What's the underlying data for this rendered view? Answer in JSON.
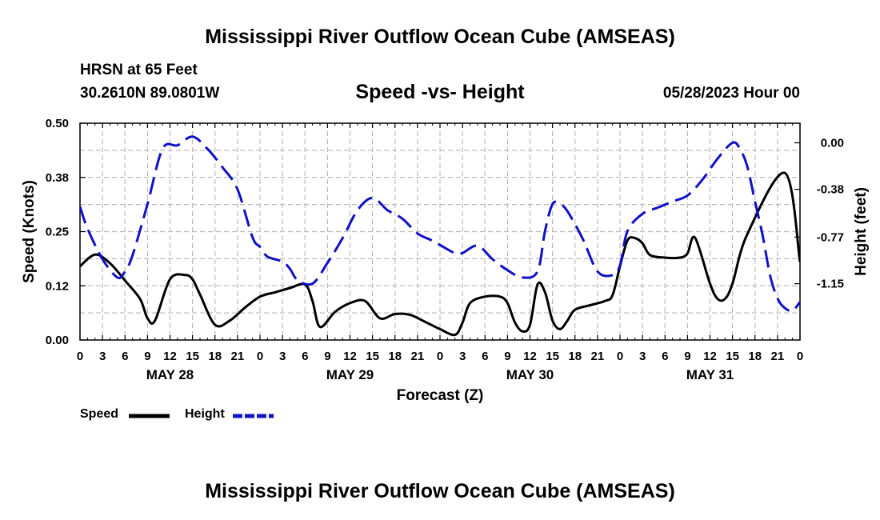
{
  "header": {
    "title": "Mississippi River Outflow Ocean Cube (AMSEAS)",
    "station": "HRSN at 65 Feet",
    "coords": "30.2610N  89.0801W",
    "subtitle": "Speed -vs- Height",
    "datetime": "05/28/2023 Hour 00",
    "footer_title": "Mississippi River Outflow Ocean Cube (AMSEAS)"
  },
  "chart_data": {
    "type": "line",
    "title": "Speed -vs- Height",
    "xlabel": "Forecast (Z)",
    "ylabel": "Speed (Knots)",
    "y2label": "Height (feet)",
    "x_range_hours": [
      0,
      96
    ],
    "x_tick_step_hours": 3,
    "x_tick_labels": [
      "0",
      "3",
      "6",
      "9",
      "12",
      "15",
      "18",
      "21",
      "0",
      "3",
      "6",
      "9",
      "12",
      "15",
      "18",
      "21",
      "0",
      "3",
      "6",
      "9",
      "12",
      "15",
      "18",
      "21",
      "0",
      "3",
      "6",
      "9",
      "12",
      "15",
      "18",
      "21",
      "0"
    ],
    "day_labels": [
      {
        "label": "MAY 28",
        "hour": 12
      },
      {
        "label": "MAY 29",
        "hour": 36
      },
      {
        "label": "MAY 30",
        "hour": 60
      },
      {
        "label": "MAY 31",
        "hour": 84
      }
    ],
    "ylim": [
      0,
      0.5
    ],
    "y_ticks": [
      0,
      0.125,
      0.25,
      0.375,
      0.5
    ],
    "y_tick_labels": [
      "0.00",
      "0.12",
      "0.25",
      "0.38",
      "0.50"
    ],
    "y2lim": [
      -1.61,
      0.16
    ],
    "y2_ticks": [
      0,
      -0.38,
      -0.77,
      -1.15
    ],
    "y2_tick_labels": [
      "0.00",
      "-0.38",
      "-0.77",
      "-1.15"
    ],
    "grid": true,
    "legend": [
      {
        "name": "Speed",
        "color": "#000000",
        "style": "solid"
      },
      {
        "name": "Height",
        "color": "#1010c8",
        "style": "dashed"
      }
    ],
    "series": [
      {
        "name": "Speed",
        "axis": "left",
        "color": "#000000",
        "x": [
          0,
          2,
          4,
          6,
          8,
          9,
          10,
          12,
          14,
          15,
          16,
          18,
          20,
          22,
          24,
          26,
          28,
          30,
          31,
          32,
          34,
          36,
          38,
          40,
          42,
          44,
          46,
          48,
          50,
          51,
          52,
          54,
          56,
          57,
          58,
          59,
          60,
          61,
          62,
          63,
          64,
          65,
          66,
          68,
          70,
          71,
          72,
          73,
          74,
          75,
          76,
          78,
          80,
          81,
          82,
          84,
          85,
          86,
          87,
          89,
          94,
          96
        ],
        "values": [
          0.17,
          0.197,
          0.177,
          0.137,
          0.095,
          0.05,
          0.045,
          0.14,
          0.15,
          0.14,
          0.105,
          0.035,
          0.045,
          0.075,
          0.1,
          0.11,
          0.12,
          0.128,
          0.09,
          0.03,
          0.065,
          0.085,
          0.09,
          0.05,
          0.06,
          0.058,
          0.042,
          0.025,
          0.012,
          0.04,
          0.085,
          0.1,
          0.1,
          0.085,
          0.04,
          0.02,
          0.035,
          0.128,
          0.11,
          0.045,
          0.025,
          0.045,
          0.07,
          0.08,
          0.09,
          0.103,
          0.17,
          0.23,
          0.235,
          0.223,
          0.196,
          0.19,
          0.19,
          0.2,
          0.236,
          0.13,
          0.095,
          0.095,
          0.13,
          0.245,
          0.385,
          0.18
        ]
      },
      {
        "name": "Height",
        "axis": "right",
        "color": "#1010c8",
        "x": [
          0,
          1,
          3,
          5,
          6,
          7,
          9,
          11,
          13,
          15,
          17,
          19,
          21,
          23,
          24,
          25,
          27,
          28,
          29,
          31,
          33,
          35,
          37,
          39,
          41,
          43,
          45,
          47,
          49,
          50,
          51,
          53,
          55,
          57,
          59,
          61,
          62,
          63,
          64,
          65,
          67,
          69,
          71,
          72,
          73,
          75,
          77,
          79,
          81,
          83,
          85,
          87,
          88,
          89,
          90,
          91,
          92,
          93,
          94,
          95,
          96
        ],
        "values": [
          -0.52,
          -0.7,
          -0.95,
          -1.1,
          -1.05,
          -0.92,
          -0.5,
          -0.05,
          -0.02,
          0.05,
          -0.05,
          -0.2,
          -0.38,
          -0.77,
          -0.85,
          -0.93,
          -0.97,
          -1.03,
          -1.12,
          -1.15,
          -0.98,
          -0.78,
          -0.55,
          -0.45,
          -0.55,
          -0.62,
          -0.74,
          -0.8,
          -0.87,
          -0.9,
          -0.9,
          -0.84,
          -0.95,
          -1.04,
          -1.1,
          -1.05,
          -0.72,
          -0.5,
          -0.5,
          -0.56,
          -0.78,
          -1.05,
          -1.08,
          -1.0,
          -0.72,
          -0.58,
          -0.53,
          -0.48,
          -0.43,
          -0.3,
          -0.13,
          0.0,
          -0.05,
          -0.2,
          -0.48,
          -0.75,
          -1.08,
          -1.27,
          -1.35,
          -1.37,
          -1.3
        ]
      }
    ]
  }
}
